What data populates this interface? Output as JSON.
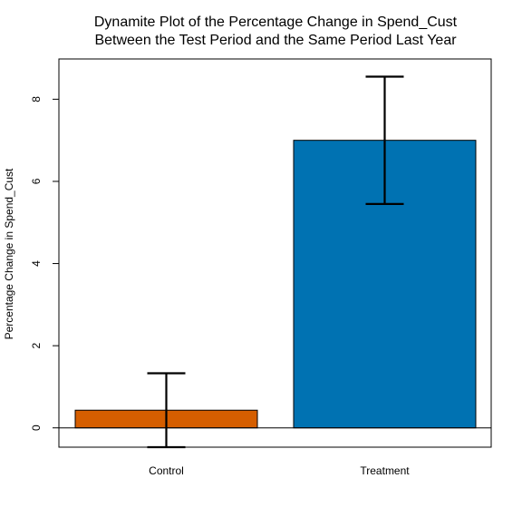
{
  "chart_data": {
    "type": "bar",
    "title_lines": [
      "Dynamite Plot of the Percentage Change in Spend_Cust",
      "Between the Test Period and the Same Period Last Year"
    ],
    "xlabel": "",
    "ylabel": "Percentage Change in Spend_Cust",
    "categories": [
      "Control",
      "Treatment"
    ],
    "values": [
      0.43,
      7.0
    ],
    "error_lower": [
      -0.47,
      5.45
    ],
    "error_upper": [
      1.33,
      8.55
    ],
    "bar_colors": [
      "#D55E00",
      "#0072B2"
    ],
    "y_ticks": [
      0,
      2,
      4,
      6,
      8
    ],
    "y_tick_labels": [
      "0",
      "2",
      "4",
      "6",
      "8"
    ],
    "ylim": [
      -0.47,
      8.98
    ],
    "grid": false,
    "reference_line": 0
  }
}
